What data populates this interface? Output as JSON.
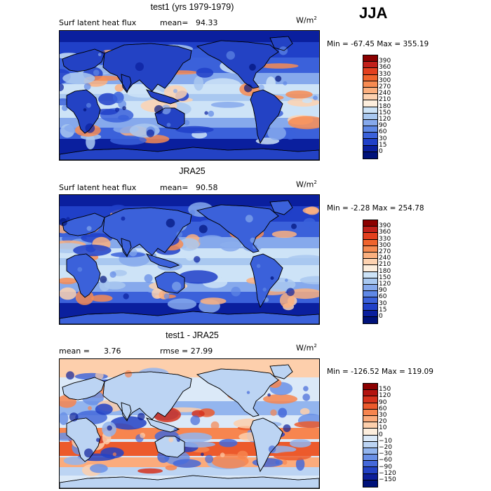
{
  "season": "JJA",
  "panels": [
    {
      "id": "model",
      "title": "test1 (yrs 1979-1979)",
      "variable": "Surf latent heat flux",
      "stat_label": "mean=",
      "stat_value": "94.33",
      "units": "W/m",
      "units_exp": "2",
      "minmax": "Min =  -67.45 Max =  355.19",
      "map_style": "model",
      "levels": [
        "390",
        "360",
        "330",
        "300",
        "270",
        "240",
        "210",
        "180",
        "150",
        "120",
        "90",
        "60",
        "30",
        "15",
        "0"
      ],
      "colors": [
        "#8b0000",
        "#c1201a",
        "#e3401f",
        "#f0642d",
        "#f78b52",
        "#fbb07f",
        "#fdd2b0",
        "#fdeedd",
        "#cde3f7",
        "#a9c8f0",
        "#86a9ec",
        "#5f88e6",
        "#3b61da",
        "#2040c8",
        "#0a1f9e",
        "#00127a"
      ]
    },
    {
      "id": "obs",
      "title": "JRA25",
      "variable": "Surf latent heat flux",
      "stat_label": "mean=",
      "stat_value": "90.58",
      "units": "W/m",
      "units_exp": "2",
      "minmax": "Min =   -2.28 Max =  254.78",
      "map_style": "obs",
      "levels": [
        "390",
        "360",
        "330",
        "300",
        "270",
        "240",
        "210",
        "180",
        "150",
        "120",
        "90",
        "60",
        "30",
        "15",
        "0"
      ],
      "colors": [
        "#8b0000",
        "#c1201a",
        "#e3401f",
        "#f0642d",
        "#f78b52",
        "#fbb07f",
        "#fdd2b0",
        "#fdeedd",
        "#cde3f7",
        "#a9c8f0",
        "#86a9ec",
        "#5f88e6",
        "#3b61da",
        "#2040c8",
        "#0a1f9e",
        "#00127a"
      ]
    },
    {
      "id": "diff",
      "title": "test1 - JRA25",
      "variable": "mean =",
      "stat_label": "3.76",
      "stat_value": "rmse =    27.99",
      "units": "W/m",
      "units_exp": "2",
      "minmax": "Min = -126.52 Max =  119.09",
      "map_style": "diff",
      "levels": [
        "150",
        "120",
        "90",
        "60",
        "30",
        "20",
        "10",
        "0",
        "−10",
        "−20",
        "−30",
        "−60",
        "−90",
        "−120",
        "−150"
      ],
      "colors": [
        "#8b0000",
        "#b3140f",
        "#d6321c",
        "#ec5a2c",
        "#f7854f",
        "#fbab7c",
        "#fdcfac",
        "#fdeedd",
        "#dbe9f8",
        "#bcd4f3",
        "#93b5ee",
        "#6a90e6",
        "#4468d9",
        "#2342c4",
        "#0d1f9a",
        "#00127a"
      ]
    }
  ]
}
